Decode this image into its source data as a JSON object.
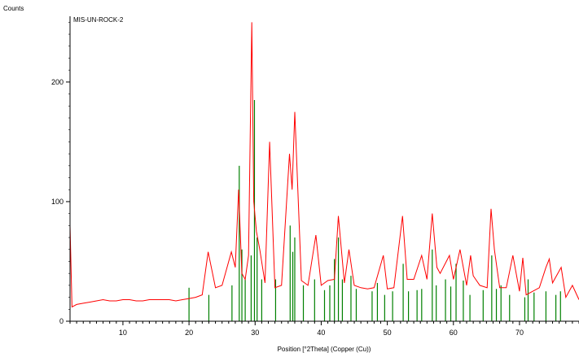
{
  "chart_data": {
    "type": "line",
    "title": "MIS-UN-ROCK-2",
    "ylabel": "Counts",
    "xlabel": "Position [°2Theta] (Copper (Cu))",
    "xlim": [
      2,
      79
    ],
    "ylim": [
      0,
      255
    ],
    "x_ticks": [
      10,
      20,
      30,
      40,
      50,
      60,
      70
    ],
    "y_ticks": [
      0,
      100,
      200
    ],
    "grid": false,
    "colors": {
      "pattern": "#ff0000",
      "reference": "#008000",
      "axis": "#000000"
    },
    "series": [
      {
        "type": "line",
        "color": "#ff0000",
        "x": [
          2,
          2.3,
          3,
          4,
          5,
          6,
          7,
          8,
          9,
          10,
          11,
          12,
          13,
          14,
          15,
          16,
          17,
          18,
          19,
          20,
          21,
          22,
          22.9,
          24,
          25,
          26.4,
          27,
          27.5,
          28,
          28.5,
          29,
          29.5,
          29.8,
          30.2,
          30.7,
          31.5,
          32.2,
          33,
          34,
          35.2,
          35.6,
          36,
          37,
          38,
          39.2,
          40,
          41,
          42,
          42.6,
          43.5,
          44.2,
          45,
          46,
          47,
          48,
          49.4,
          50,
          51,
          52.3,
          53,
          54,
          55.2,
          56,
          56.8,
          57.5,
          58,
          59.4,
          60,
          61,
          62,
          62.6,
          63,
          64,
          65.1,
          65.7,
          66.2,
          67,
          68,
          69,
          70,
          70.5,
          71,
          72,
          73,
          74,
          74.5,
          75,
          76.3,
          77,
          78,
          79
        ],
        "y": [
          80,
          12,
          14,
          15,
          16,
          17,
          18,
          17,
          17,
          18,
          18,
          17,
          17,
          18,
          18,
          18,
          18,
          17,
          18,
          19,
          20,
          22,
          58,
          28,
          30,
          58,
          45,
          110,
          40,
          35,
          55,
          250,
          100,
          75,
          60,
          32,
          150,
          28,
          30,
          140,
          110,
          175,
          34,
          30,
          72,
          30,
          34,
          35,
          88,
          32,
          60,
          30,
          28,
          27,
          28,
          55,
          27,
          28,
          88,
          35,
          35,
          55,
          35,
          90,
          45,
          40,
          55,
          35,
          60,
          30,
          55,
          38,
          30,
          28,
          94,
          60,
          28,
          28,
          55,
          25,
          53,
          22,
          25,
          28,
          45,
          52,
          32,
          45,
          20,
          30,
          18
        ]
      }
    ],
    "reference_lines": {
      "type": "stick",
      "color": "#008000",
      "positions": [
        20.0,
        23.0,
        26.5,
        27.6,
        28.0,
        28.5,
        29.4,
        29.9,
        30.3,
        31.0,
        33.1,
        35.3,
        35.7,
        36.0,
        37.3,
        39.0,
        40.5,
        41.3,
        42.0,
        42.6,
        43.2,
        44.5,
        45.3,
        47.7,
        48.5,
        49.6,
        50.8,
        52.4,
        53.2,
        54.5,
        55.2,
        56.8,
        57.4,
        58.8,
        59.6,
        60.4,
        61.5,
        62.5,
        64.5,
        65.8,
        66.5,
        67.2,
        68.5,
        70.8,
        71.3,
        72.2,
        74.0,
        75.5,
        76.2
      ],
      "heights": [
        28,
        22,
        30,
        130,
        60,
        35,
        55,
        185,
        70,
        35,
        35,
        80,
        58,
        70,
        30,
        35,
        26,
        30,
        52,
        70,
        35,
        38,
        27,
        25,
        32,
        22,
        25,
        48,
        25,
        26,
        27,
        60,
        30,
        35,
        29,
        48,
        34,
        22,
        26,
        55,
        27,
        30,
        22,
        20,
        35,
        24,
        25,
        22,
        25
      ]
    },
    "annotations": [
      "MIS-UN-ROCK-2"
    ]
  }
}
